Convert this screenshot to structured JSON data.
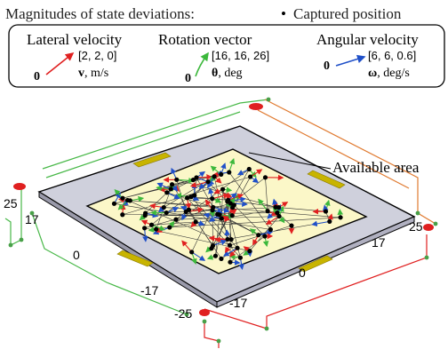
{
  "header": {
    "title": "Magnitudes of state deviations:",
    "bullet": "•",
    "captured": "Captured position"
  },
  "legend": {
    "lateral": {
      "title": "Lateral velocity",
      "zero": "0",
      "magnitude": "[2, 2, 0]",
      "symbol": "v",
      "unit": ", m/s",
      "color": "#e02020"
    },
    "rotation": {
      "title": "Rotation vector",
      "zero": "0",
      "magnitude": "[16, 16, 26]",
      "symbol": "θ",
      "unit": ", deg",
      "color": "#3cb83c"
    },
    "angular": {
      "title": "Angular velocity",
      "zero": "0",
      "magnitude": "[6, 6, 0.6]",
      "symbol": "ω",
      "unit": ", deg/s",
      "color": "#2050c8"
    }
  },
  "annotation": {
    "available_area": "Available area"
  },
  "axis_labels": {
    "left": [
      "25",
      "17",
      "0",
      "-17",
      "-25"
    ],
    "right": [
      "-17",
      "0",
      "17",
      "25"
    ]
  },
  "colors": {
    "platform": "#cfd0dc",
    "area_fill": "#fbf7c8",
    "pads": "#c8b400",
    "frame_green": "#48b848",
    "frame_orange": "#e07a30",
    "frame_red": "#e02020",
    "dot": "#000000"
  }
}
